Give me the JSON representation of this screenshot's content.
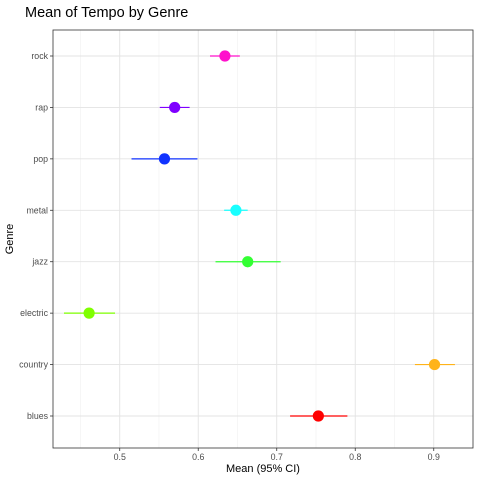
{
  "chart_data": {
    "type": "dot-whisker",
    "title": "Mean of Tempo by Genre",
    "xlabel": "Mean (95% CI)",
    "ylabel": "Genre",
    "xlim": [
      0.415,
      0.95
    ],
    "x_ticks": [
      0.5,
      0.6,
      0.7,
      0.8,
      0.9
    ],
    "x_tick_labels": [
      "0.5",
      "0.6",
      "0.7",
      "0.8",
      "0.9"
    ],
    "grid": true,
    "categories": [
      "blues",
      "country",
      "electric",
      "jazz",
      "metal",
      "pop",
      "rap",
      "rock"
    ],
    "series": [
      {
        "values": [
          {
            "genre": "blues",
            "mean": 0.753,
            "lower": 0.717,
            "upper": 0.79,
            "color": "#ff0000"
          },
          {
            "genre": "country",
            "mean": 0.901,
            "lower": 0.876,
            "upper": 0.927,
            "color": "#ffb319"
          },
          {
            "genre": "electric",
            "mean": 0.461,
            "lower": 0.429,
            "upper": 0.494,
            "color": "#7fff00"
          },
          {
            "genre": "jazz",
            "mean": 0.663,
            "lower": 0.622,
            "upper": 0.705,
            "color": "#33ff33"
          },
          {
            "genre": "metal",
            "mean": 0.648,
            "lower": 0.633,
            "upper": 0.663,
            "color": "#19ffff"
          },
          {
            "genre": "pop",
            "mean": 0.557,
            "lower": 0.515,
            "upper": 0.599,
            "color": "#1133ff"
          },
          {
            "genre": "rap",
            "mean": 0.57,
            "lower": 0.551,
            "upper": 0.589,
            "color": "#7f00ff"
          },
          {
            "genre": "rock",
            "mean": 0.634,
            "lower": 0.615,
            "upper": 0.653,
            "color": "#ff11cc"
          }
        ]
      }
    ]
  }
}
